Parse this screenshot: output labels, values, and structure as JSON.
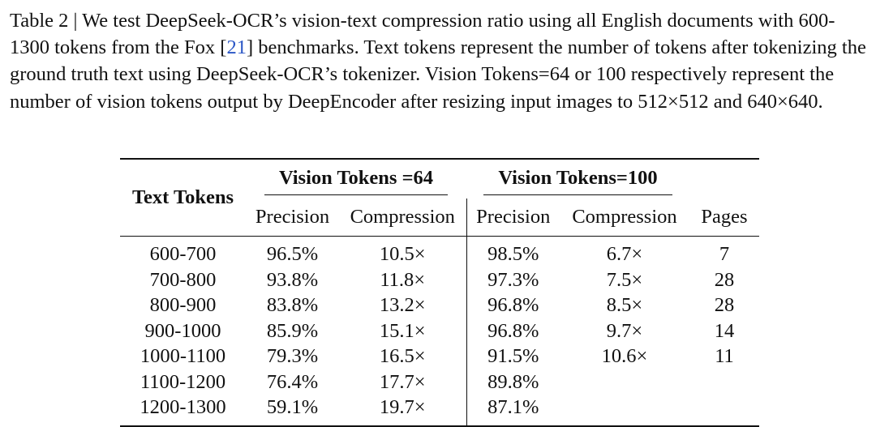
{
  "caption": {
    "label": "Table 2 | We test DeepSeek-OCR’s vision-text compression ratio using all English documents with 600-1300 tokens from the Fox [",
    "ref": "21",
    "rest": "] benchmarks. Text tokens represent the number of tokens after tokenizing the ground truth text using DeepSeek-OCR’s tokenizer. Vision Tokens=64 or 100 respectively represent the number of vision tokens output by DeepEncoder after resizing input images to 512×512 and 640×640."
  },
  "table": {
    "text_tokens_header": "Text Tokens",
    "group1_header": "Vision Tokens =64",
    "group2_header": "Vision Tokens=100",
    "sub_headers": {
      "precision1": "Precision",
      "compression1": "Compression",
      "precision2": "Precision",
      "compression2": "Compression",
      "pages": "Pages"
    },
    "rows": [
      {
        "text_tokens": "600-700",
        "p64": "96.5%",
        "c64": "10.5×",
        "p100": "98.5%",
        "c100": "6.7×",
        "pages": "7"
      },
      {
        "text_tokens": "700-800",
        "p64": "93.8%",
        "c64": "11.8×",
        "p100": "97.3%",
        "c100": "7.5×",
        "pages": "28"
      },
      {
        "text_tokens": "800-900",
        "p64": "83.8%",
        "c64": "13.2×",
        "p100": "96.8%",
        "c100": "8.5×",
        "pages": "28"
      },
      {
        "text_tokens": "900-1000",
        "p64": "85.9%",
        "c64": "15.1×",
        "p100": "96.8%",
        "c100": "9.7×",
        "pages": "14"
      },
      {
        "text_tokens": "1000-1100",
        "p64": "79.3%",
        "c64": "16.5×",
        "p100": "91.5%",
        "c100": "10.6×",
        "pages": "11"
      },
      {
        "text_tokens": "1100-1200",
        "p64": "76.4%",
        "c64": "17.7×",
        "p100": "89.8%",
        "c100": "",
        "pages": ""
      },
      {
        "text_tokens": "1200-1300",
        "p64": "59.1%",
        "c64": "19.7×",
        "p100": "87.1%",
        "c100": "",
        "pages": ""
      }
    ]
  }
}
